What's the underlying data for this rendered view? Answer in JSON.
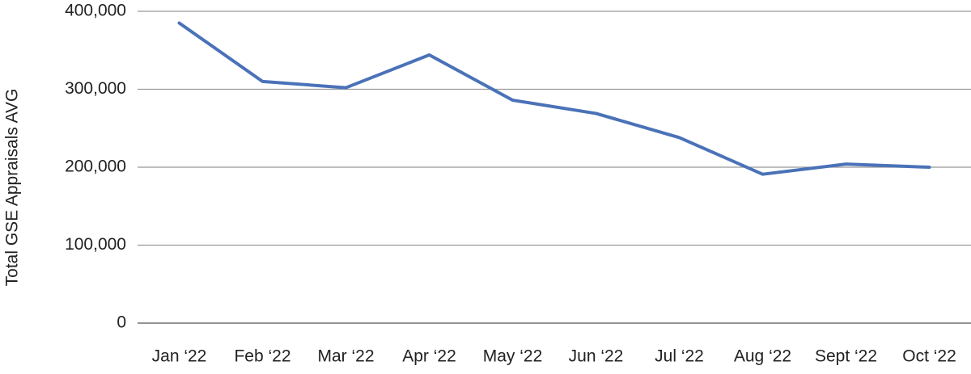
{
  "chart_data": {
    "type": "line",
    "ylabel": "Total GSE Appraisals AVG",
    "categories": [
      "Jan ‘22",
      "Feb ‘22",
      "Mar ‘22",
      "Apr ‘22",
      "May ‘22",
      "Jun ‘22",
      "Jul ‘22",
      "Aug ‘22",
      "Sept ‘22",
      "Oct ‘22"
    ],
    "series": [
      {
        "color": "#4a72b8",
        "values": [
          385000,
          310000,
          302000,
          344000,
          286000,
          269000,
          238000,
          191000,
          204000,
          200000
        ]
      }
    ],
    "ylim": [
      0,
      400000
    ],
    "yticks": [
      0,
      {
        "value": 100000,
        "label": "100,000"
      },
      {
        "value": 200000,
        "label": "200,000"
      },
      {
        "value": 300000,
        "label": "300,000"
      },
      {
        "value": 400000,
        "label": "400,000"
      }
    ],
    "grid": true
  }
}
